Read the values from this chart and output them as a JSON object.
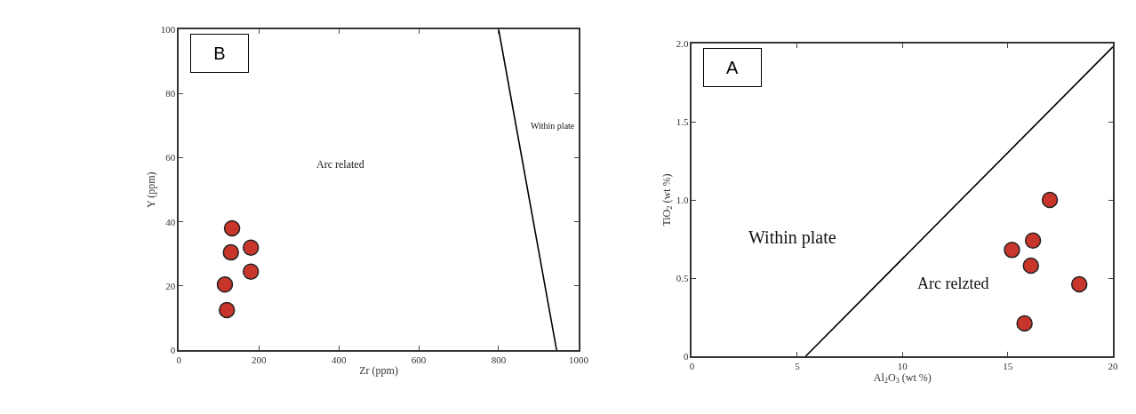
{
  "chart_data": [
    {
      "type": "scatter",
      "xlabel": "Zr (ppm)",
      "ylabel": "Y (ppm)",
      "xlim": [
        0,
        1000
      ],
      "ylim": [
        0,
        100
      ],
      "xticks": [
        0,
        200,
        400,
        600,
        800,
        1000
      ],
      "yticks": [
        0,
        20,
        40,
        60,
        80,
        100
      ],
      "series": [
        {
          "color": "#c8352b",
          "marker": "circle",
          "x": [
            133,
            130,
            180,
            180,
            115,
            120
          ],
          "values": [
            38,
            30.5,
            32,
            24.5,
            20.5,
            12.5
          ]
        },
        {
          "type": "line",
          "color": "#000000",
          "line_style": "solid",
          "marker": "none",
          "x": [
            800,
            945
          ],
          "values": [
            100,
            0
          ]
        }
      ],
      "annotations": [
        "B",
        "Arc related",
        "Within plate"
      ]
    },
    {
      "type": "scatter",
      "xlabel": "Al$_{2}$O$_{3}$ (wt %)",
      "ylabel": "TiO$_{2}$ (wt %)",
      "xlim": [
        0,
        20
      ],
      "ylim": [
        0,
        2
      ],
      "xticks": [
        0,
        5,
        10,
        15,
        20
      ],
      "yticks": [
        0,
        0.5,
        {
          "value": 1,
          "label": "1.0"
        },
        1.5,
        {
          "value": 2,
          "label": "2.0"
        }
      ],
      "series": [
        {
          "color": "#c8352b",
          "marker": "circle",
          "x": [
            15.2,
            16.2,
            16.1,
            17,
            18.4,
            15.8
          ],
          "values": [
            0.68,
            0.74,
            0.58,
            1.0,
            0.46,
            0.21
          ]
        },
        {
          "type": "line",
          "color": "#000000",
          "line_style": "solid",
          "marker": "none",
          "x": [
            5.4,
            20
          ],
          "values": [
            0,
            1.98
          ]
        }
      ],
      "annotations": [
        "A",
        "Within plate",
        "Arc relzted"
      ]
    }
  ]
}
